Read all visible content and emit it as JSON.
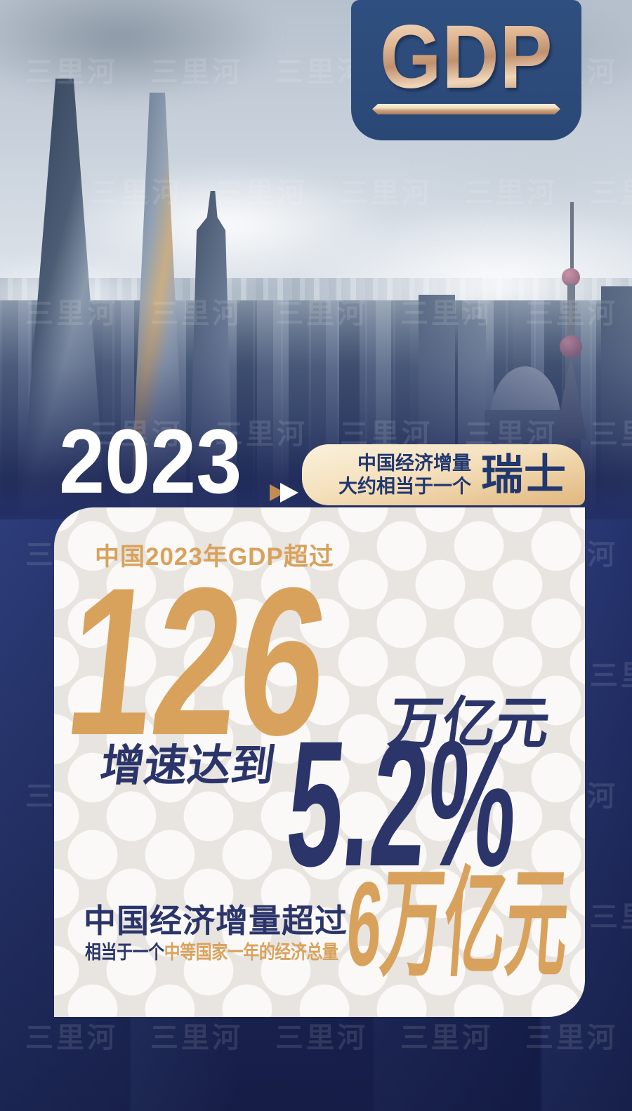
{
  "watermark": {
    "text": "三里河"
  },
  "badge": {
    "title": "GDP"
  },
  "hero": {
    "year": "2023"
  },
  "highlight_tag": {
    "line1": "中国经济增量",
    "line2": "大约相当于一个",
    "country": "瑞士"
  },
  "card": {
    "headline": "中国2023年GDP超过",
    "gdp_value": "126",
    "gdp_unit": "万亿元",
    "growth_label": "增速达到",
    "growth_value": "5.2%",
    "increment_value": "6万亿元",
    "increment_title": "中国经济增量超过",
    "increment_note_prefix": "相当于一个",
    "increment_note_highlight": "中等国家一年的经济总量"
  },
  "colors": {
    "navy": "#2b356a",
    "gold": "#d8a25d",
    "badge-blue": "#2a4876",
    "bronze": "#e7c5a4",
    "card-bg": "#faf9f7",
    "backdrop": "#222f67"
  }
}
